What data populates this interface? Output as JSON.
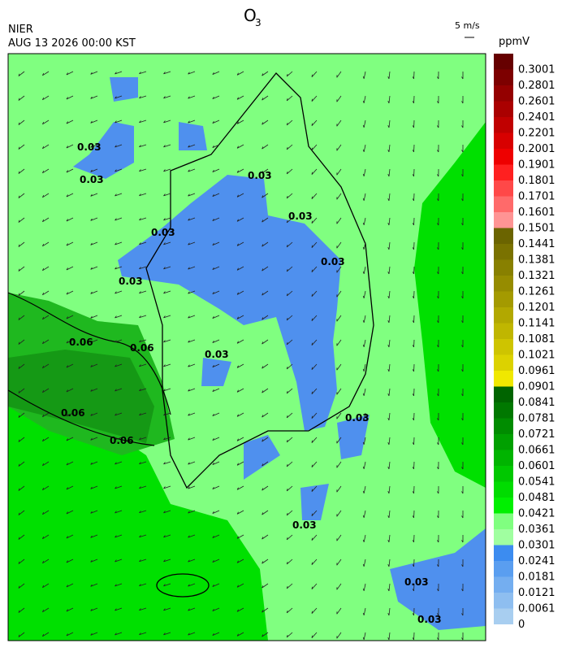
{
  "header": {
    "title": "O",
    "title_sub": "3",
    "org": "NIER",
    "datetime": "AUG 13 2026 00:00 KST",
    "wind_scale": "5 m/s",
    "unit": "ppmV"
  },
  "colorbar": {
    "labels": [
      "0.3001",
      "0.2801",
      "0.2601",
      "0.2401",
      "0.2201",
      "0.2001",
      "0.1901",
      "0.1801",
      "0.1701",
      "0.1601",
      "0.1501",
      "0.1441",
      "0.1381",
      "0.1321",
      "0.1261",
      "0.1201",
      "0.1141",
      "0.1081",
      "0.1021",
      "0.0961",
      "0.0901",
      "0.0841",
      "0.0781",
      "0.0721",
      "0.0661",
      "0.0601",
      "0.0541",
      "0.0481",
      "0.0421",
      "0.0361",
      "0.0301",
      "0.0241",
      "0.0181",
      "0.0121",
      "0.0061",
      "0"
    ],
    "colors": [
      "#660000",
      "#7d0000",
      "#940000",
      "#aa0000",
      "#c00000",
      "#d80000",
      "#ee0000",
      "#ff2020",
      "#ff4848",
      "#ff6a6a",
      "#ff9494",
      "#6b6400",
      "#7a7200",
      "#888000",
      "#968c00",
      "#a49a00",
      "#b2a800",
      "#c0b600",
      "#cec400",
      "#dcd200",
      "#f0e800",
      "#006400",
      "#007800",
      "#008c00",
      "#00a000",
      "#00b400",
      "#00c800",
      "#00dc00",
      "#00f000",
      "#80ff80",
      "#a0ffa0",
      "#3c8cf0",
      "#5a9ef0",
      "#74aef0",
      "#8ebef0",
      "#a8cef0"
    ]
  },
  "contour_labels": [
    "0.03",
    "0.03",
    "0.03",
    "0.03",
    "0.03",
    "0.03",
    "0.03",
    "0.03",
    "0.06",
    "0.06",
    "0.06",
    "0.06",
    "0.03",
    "0.03",
    "0.03",
    "0.03"
  ]
}
